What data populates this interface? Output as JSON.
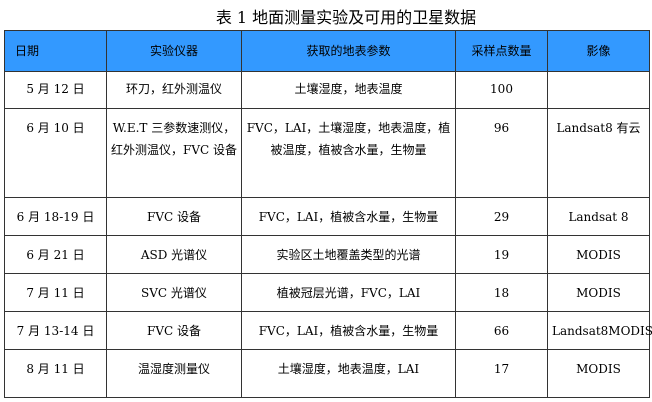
{
  "title": "表 1  地面测量实验及可用的卫星数据",
  "table": {
    "headers": [
      "日期",
      "实验仪器",
      "获取的地表参数",
      "采样点数量",
      "影像"
    ],
    "rows": [
      [
        "5 月 12 日",
        "环刀，红外测温仪",
        "土壤湿度，地表温度",
        "100",
        ""
      ],
      [
        "6 月 10 日",
        "W.E.T 三参数速测仪，红外测温仪，FVC 设备",
        "FVC，LAI，土壤湿度，地表温度，植被温度，植被含水量，生物量",
        "96",
        "Landsat8 有云"
      ],
      [
        "6 月 18-19 日",
        "FVC 设备",
        "FVC，LAI，植被含水量，生物量",
        "29",
        "Landsat 8"
      ],
      [
        "6 月 21 日",
        "ASD 光谱仪",
        "实验区土地覆盖类型的光谱",
        "19",
        "MODIS"
      ],
      [
        "7 月 11 日",
        "SVC 光谱仪",
        "植被冠层光谱，FVC，LAI",
        "18",
        "MODIS"
      ],
      [
        "7 月 13-14 日",
        "FVC 设备",
        "FVC，LAI，植被含水量，生物量",
        "66",
        "Landsat8MODIS"
      ],
      [
        "8 月 11 日",
        "温湿度测量仪",
        "土壤湿度，地表温度，LAI",
        "17",
        "MODIS"
      ]
    ]
  },
  "colors": {
    "header_bg": "#3399ff",
    "border": "#333333"
  }
}
